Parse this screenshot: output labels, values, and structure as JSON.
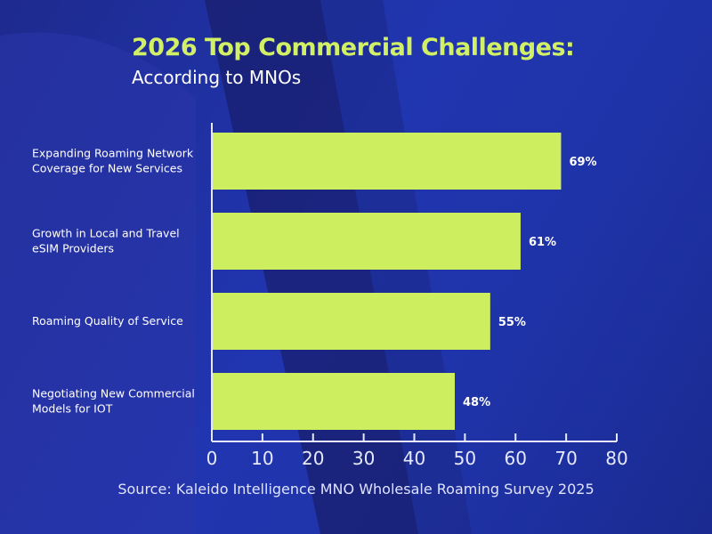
{
  "chart_data": {
    "type": "bar",
    "orientation": "horizontal",
    "title": "2026 Top Commercial Challenges:",
    "subtitle": "According to MNOs",
    "categories": [
      [
        "Expanding Roaming Network",
        "Coverage for New Services"
      ],
      [
        "Growth in Local and Travel",
        "eSIM Providers"
      ],
      [
        "Roaming Quality of Service"
      ],
      [
        "Negotiating New Commercial",
        "Models for IOT"
      ]
    ],
    "values": [
      69,
      61,
      55,
      48
    ],
    "data_labels": [
      "69%",
      "61%",
      "55%",
      "48%"
    ],
    "xlim": [
      0,
      80
    ],
    "xticks": [
      "0",
      "10",
      "20",
      "30",
      "40",
      "50",
      "60",
      "70",
      "80"
    ],
    "grid": false,
    "bar_color": "#cdee5f",
    "source": "Source: Kaleido Intelligence MNO Wholesale Roaming Survey 2025"
  },
  "colors": {
    "background": "#1f33a8",
    "title": "#d2f065",
    "axis": "#e6e9ff"
  }
}
